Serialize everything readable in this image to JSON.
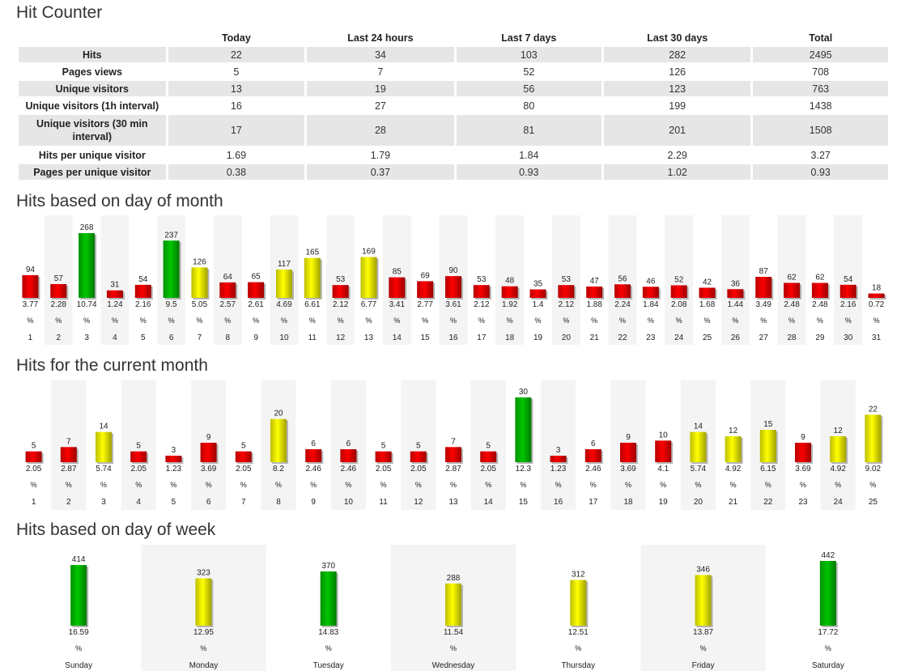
{
  "titles": {
    "hit_counter": "Hit Counter",
    "day_of_month": "Hits based on day of month",
    "current_month": "Hits for the current month",
    "day_of_week": "Hits based on day of week"
  },
  "colors": {
    "red": "#e00000",
    "yellow": "#e6e600",
    "green": "#00b000"
  },
  "percent_sign": "%",
  "stats_table": {
    "columns": [
      "",
      "Today",
      "Last 24 hours",
      "Last 7 days",
      "Last 30 days",
      "Total"
    ],
    "rows": [
      {
        "label": "Hits",
        "values": [
          "22",
          "34",
          "103",
          "282",
          "2495"
        ]
      },
      {
        "label": "Pages views",
        "values": [
          "5",
          "7",
          "52",
          "126",
          "708"
        ]
      },
      {
        "label": "Unique visitors",
        "values": [
          "13",
          "19",
          "56",
          "123",
          "763"
        ]
      },
      {
        "label": "Unique visitors (1h interval)",
        "values": [
          "16",
          "27",
          "80",
          "199",
          "1438"
        ]
      },
      {
        "label": "Unique visitors (30 min interval)",
        "values": [
          "17",
          "28",
          "81",
          "201",
          "1508"
        ]
      },
      {
        "label": "Hits per unique visitor",
        "values": [
          "1.69",
          "1.79",
          "1.84",
          "2.29",
          "3.27"
        ]
      },
      {
        "label": "Pages per unique visitor",
        "values": [
          "0.38",
          "0.37",
          "0.93",
          "1.02",
          "0.93"
        ]
      }
    ]
  },
  "chart_data": [
    {
      "type": "bar",
      "title": "Hits based on day of month",
      "categories": [
        "1",
        "2",
        "3",
        "4",
        "5",
        "6",
        "7",
        "8",
        "9",
        "10",
        "11",
        "12",
        "13",
        "14",
        "15",
        "16",
        "17",
        "18",
        "19",
        "20",
        "21",
        "22",
        "23",
        "24",
        "25",
        "26",
        "27",
        "28",
        "29",
        "30",
        "31"
      ],
      "values": [
        94,
        57,
        268,
        31,
        54,
        237,
        126,
        64,
        65,
        117,
        165,
        53,
        169,
        85,
        69,
        90,
        53,
        48,
        35,
        53,
        47,
        56,
        46,
        52,
        42,
        36,
        87,
        62,
        62,
        54,
        18
      ],
      "percents": [
        "3.77",
        "2.28",
        "10.74",
        "1.24",
        "2.16",
        "9.5",
        "5.05",
        "2.57",
        "2.61",
        "4.69",
        "6.61",
        "2.12",
        "6.77",
        "3.41",
        "2.77",
        "3.61",
        "2.12",
        "1.92",
        "1.4",
        "2.12",
        "1.88",
        "2.24",
        "1.84",
        "2.08",
        "1.68",
        "1.44",
        "3.49",
        "2.48",
        "2.48",
        "2.16",
        "0.72"
      ],
      "bar_colors": [
        "red",
        "red",
        "green",
        "red",
        "red",
        "green",
        "yellow",
        "red",
        "red",
        "yellow",
        "yellow",
        "red",
        "yellow",
        "red",
        "red",
        "red",
        "red",
        "red",
        "red",
        "red",
        "red",
        "red",
        "red",
        "red",
        "red",
        "red",
        "red",
        "red",
        "red",
        "red",
        "red"
      ]
    },
    {
      "type": "bar",
      "title": "Hits for the current month",
      "categories": [
        "1",
        "2",
        "3",
        "4",
        "5",
        "6",
        "7",
        "8",
        "9",
        "10",
        "11",
        "12",
        "13",
        "14",
        "15",
        "16",
        "17",
        "18",
        "19",
        "20",
        "21",
        "22",
        "23",
        "24",
        "25"
      ],
      "values": [
        5,
        7,
        14,
        5,
        3,
        9,
        5,
        20,
        6,
        6,
        5,
        5,
        7,
        5,
        30,
        3,
        6,
        9,
        10,
        14,
        12,
        15,
        9,
        12,
        22
      ],
      "percents": [
        "2.05",
        "2.87",
        "5.74",
        "2.05",
        "1.23",
        "3.69",
        "2.05",
        "8.2",
        "2.46",
        "2.46",
        "2.05",
        "2.05",
        "2.87",
        "2.05",
        "12.3",
        "1.23",
        "2.46",
        "3.69",
        "4.1",
        "5.74",
        "4.92",
        "6.15",
        "3.69",
        "4.92",
        "9.02"
      ],
      "bar_colors": [
        "red",
        "red",
        "yellow",
        "red",
        "red",
        "red",
        "red",
        "yellow",
        "red",
        "red",
        "red",
        "red",
        "red",
        "red",
        "green",
        "red",
        "red",
        "red",
        "red",
        "yellow",
        "yellow",
        "yellow",
        "red",
        "yellow",
        "yellow"
      ]
    },
    {
      "type": "bar",
      "title": "Hits based on day of week",
      "categories": [
        "Sunday",
        "Monday",
        "Tuesday",
        "Wednesday",
        "Thursday",
        "Friday",
        "Saturday"
      ],
      "values": [
        414,
        323,
        370,
        288,
        312,
        346,
        442
      ],
      "percents": [
        "16.59",
        "12.95",
        "14.83",
        "11.54",
        "12.51",
        "13.87",
        "17.72"
      ],
      "bar_colors": [
        "green",
        "yellow",
        "green",
        "yellow",
        "yellow",
        "yellow",
        "green"
      ]
    }
  ]
}
